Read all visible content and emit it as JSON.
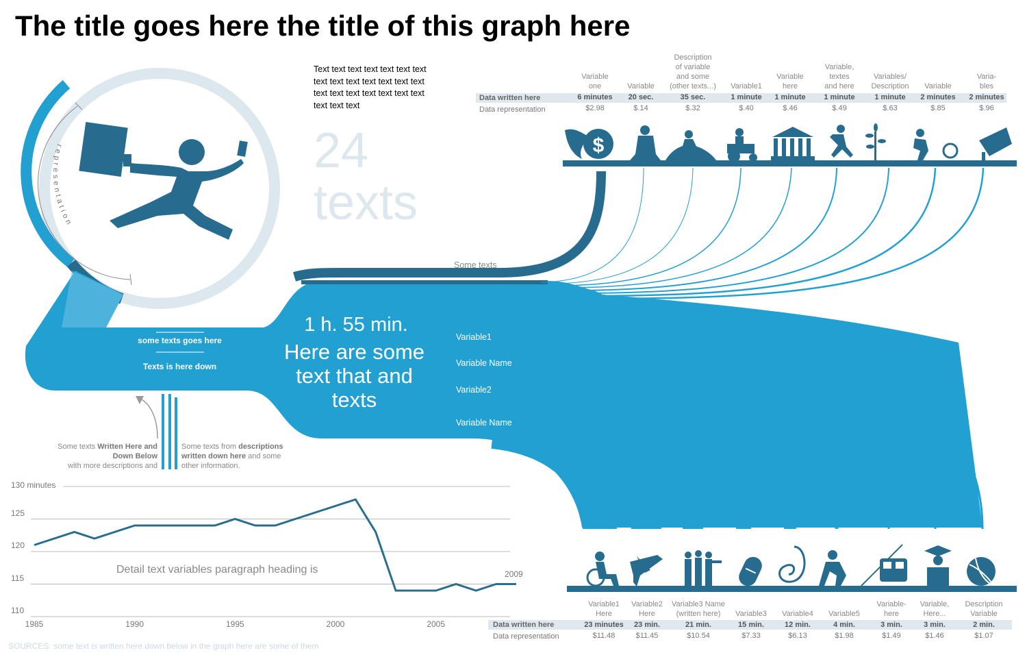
{
  "title": "The title goes here the title of this graph here",
  "intro_text": "Text text text text text text text text text text text text text text text text text text text text text text text text",
  "big_number": "24",
  "big_word": "texts",
  "circle_label": "representation",
  "center": {
    "line1": "1 h. 55 min.",
    "line2": "Here are some",
    "line3": "text that and",
    "line4": "texts"
  },
  "stem_labels": {
    "top": "some texts goes here",
    "bottom": "Texts is here down"
  },
  "branch_labels": [
    "Variable1",
    "Variable Name",
    "Variable2",
    "Variable Name"
  ],
  "some_texts_label": "Some texts",
  "annotation_left": {
    "prefix": "Some texts ",
    "bold1": "Written Here and",
    "bold2": "Down Below",
    "rest": "with more descriptions and"
  },
  "annotation_right": {
    "prefix": "Some texts from ",
    "bold1": "descriptions",
    "bold2": "written down here",
    "rest1": " and some",
    "rest2": "other information."
  },
  "top_table": {
    "row1_label": "Data written here",
    "row2_label": "Data representation",
    "columns": [
      {
        "head": "Variable\none",
        "v1": "6 minutes",
        "v2": "$2.98",
        "icon": "winged-dollar-icon"
      },
      {
        "head": "Variable",
        "v1": "20 sec.",
        "v2": "$.14",
        "icon": "statue-icon"
      },
      {
        "head": "Description\nof variable\nand some\n(other texts...)",
        "v1": "35 sec.",
        "v2": "$.32",
        "icon": "farm-work-icon"
      },
      {
        "head": "Variable1",
        "v1": "1 minute",
        "v2": "$.40",
        "icon": "tractor-icon"
      },
      {
        "head": "Variable\nhere",
        "v1": "1 minute",
        "v2": "$.46",
        "icon": "bank-building-icon"
      },
      {
        "head": "Variable,\ntextes\nand here",
        "v1": "1 minute",
        "v2": "$.49",
        "icon": "jumping-person-icon"
      },
      {
        "head": "Variables/\nDescription",
        "v1": "1 minute",
        "v2": "$.63",
        "icon": "plant-icon"
      },
      {
        "head": "Variable",
        "v1": "2 minutes",
        "v2": "$.85",
        "icon": "worker-icon"
      },
      {
        "head": "Varia-\nbles",
        "v1": "2 minutes",
        "v2": "$.96",
        "icon": "hand-money-icon"
      }
    ]
  },
  "bottom_table": {
    "row1_label": "Data written here",
    "row2_label": "Data representation",
    "columns": [
      {
        "head": "Variable1\nHere",
        "v1": "23 minutes",
        "v2": "$11.48",
        "icon": "wheelchair-icon"
      },
      {
        "head": "Variable2\nHere",
        "v1": "23 min.",
        "v2": "$11.45",
        "icon": "airplane-icon"
      },
      {
        "head": "Variable3 Name\n(written here)",
        "v1": "21 min.",
        "v2": "$10.54",
        "icon": "soldiers-icon"
      },
      {
        "head": "Variable3",
        "v1": "15 min.",
        "v2": "$7.33",
        "icon": "pill-icon"
      },
      {
        "head": "Variable4",
        "v1": "12 min.",
        "v2": "$6.13",
        "icon": "stethoscope-icon"
      },
      {
        "head": "Variable5",
        "v1": "4 min.",
        "v2": "$1.98",
        "icon": "helper-person-icon"
      },
      {
        "head": "Variable-\nhere",
        "v1": "3 min.",
        "v2": "$1.49",
        "icon": "train-icon"
      },
      {
        "head": "Variable,\nHere...",
        "v1": "3 min.",
        "v2": "$1.46",
        "icon": "graduate-icon"
      },
      {
        "head": "Description\nVariable",
        "v1": "2 min.",
        "v2": "$1.07",
        "icon": "globe-icon"
      }
    ]
  },
  "chart_data": {
    "type": "line",
    "title": "",
    "annotation": "Detail text variables paragraph heading is",
    "end_label": "2009",
    "ylabel_top": "130 minutes",
    "yticks": [
      110,
      115,
      120,
      125
    ],
    "xticks": [
      1985,
      1990,
      1995,
      2000,
      2005
    ],
    "xlim": [
      1985,
      2009
    ],
    "ylim": [
      110,
      130
    ],
    "grid": true,
    "series": [
      {
        "x": [
          1985,
          1987,
          1988,
          1990,
          1992,
          1994,
          1995,
          1996,
          1997,
          1998,
          2001,
          2002,
          2003,
          2004,
          2005,
          2006,
          2007,
          2008,
          2009
        ],
        "values": [
          121,
          123,
          122,
          124,
          124,
          124,
          125,
          124,
          124,
          125,
          128,
          123,
          114,
          114,
          114,
          115,
          114,
          115,
          115
        ]
      }
    ],
    "line_color": "#2a6e8f"
  },
  "sources": "SOURCES: some text is written here down below in the graph here are some of them",
  "colors": {
    "blue": "#22a0d2",
    "dark_blue": "#276c8f",
    "light_gray_blue": "#dde7ee",
    "table_band": "#dfe8ef"
  }
}
